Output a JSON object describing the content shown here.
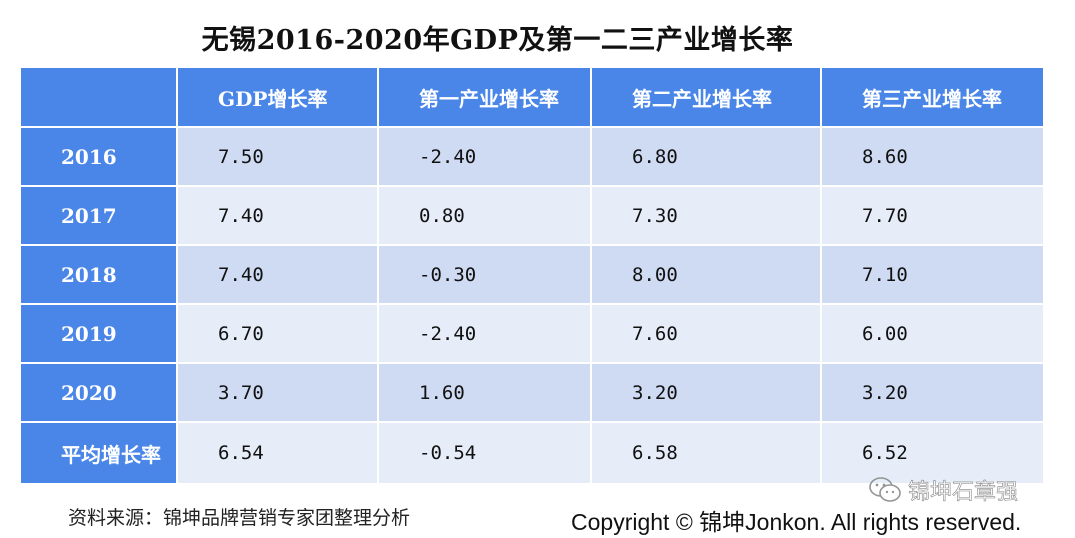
{
  "title": "无锡2016-2020年GDP及第一二三产业增长率",
  "table": {
    "headers": [
      "",
      "GDP增长率",
      "第一产业增长率",
      "第二产业增长率",
      "第三产业增长率"
    ],
    "rows": [
      {
        "label": "2016",
        "values": [
          "7.50",
          "-2.40",
          "6.80",
          "8.60"
        ]
      },
      {
        "label": "2017",
        "values": [
          "7.40",
          "0.80",
          "7.30",
          "7.70"
        ]
      },
      {
        "label": "2018",
        "values": [
          "7.40",
          "-0.30",
          "8.00",
          "7.10"
        ]
      },
      {
        "label": "2019",
        "values": [
          "6.70",
          "-2.40",
          "7.60",
          "6.00"
        ]
      },
      {
        "label": "2020",
        "values": [
          "3.70",
          "1.60",
          "3.20",
          "3.20"
        ]
      },
      {
        "label": "平均增长率",
        "values": [
          "6.54",
          "-0.54",
          "6.58",
          "6.52"
        ]
      }
    ]
  },
  "footer": {
    "source": "资料来源：锦坤品牌营销专家团整理分析",
    "copyright": "Copyright © 锦坤Jonkon. All rights reserved.",
    "watermark": "锦坤石章强",
    "watermark_icon": "wechat-icon"
  },
  "colors": {
    "header_blue": "#4a86e8",
    "row_light": "#cfdaf3",
    "row_lighter": "#e6ecf8"
  }
}
